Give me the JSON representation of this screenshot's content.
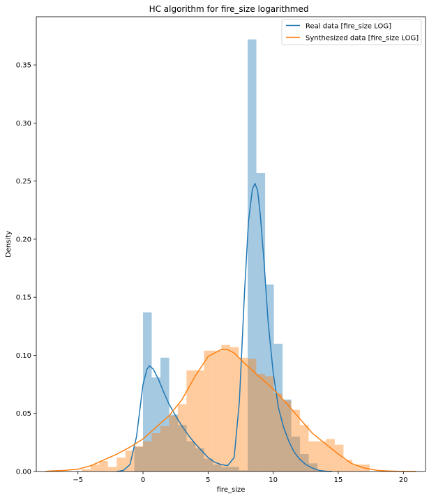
{
  "chart_data": {
    "type": "histogram",
    "title": "HC algorithm for fire_size logarithmed",
    "xlabel": "fire_size",
    "ylabel": "Density",
    "xlim": [
      -8.2,
      21.7
    ],
    "ylim": [
      0,
      0.3915
    ],
    "xticks": [
      -5,
      0,
      5,
      10,
      15,
      20
    ],
    "xtick_labels": [
      "−5",
      "0",
      "5",
      "10",
      "15",
      "20"
    ],
    "yticks": [
      0.0,
      0.05,
      0.1,
      0.15,
      0.2,
      0.25,
      0.3,
      0.35
    ],
    "ytick_labels": [
      "0.00",
      "0.05",
      "0.10",
      "0.15",
      "0.20",
      "0.25",
      "0.30",
      "0.35"
    ],
    "legend_location": "top-right",
    "series": [
      {
        "name": "Real data [fire_size LOG]",
        "color": "#1f77b4",
        "histogram": {
          "bin_width": 0.67,
          "bins": [
            {
              "x0": -0.67,
              "x1": 0.0,
              "density": 0.021
            },
            {
              "x0": 0.0,
              "x1": 0.67,
              "density": 0.137
            },
            {
              "x0": 0.67,
              "x1": 1.34,
              "density": 0.081
            },
            {
              "x0": 1.34,
              "x1": 2.01,
              "density": 0.098
            },
            {
              "x0": 2.01,
              "x1": 2.68,
              "density": 0.049
            },
            {
              "x0": 2.68,
              "x1": 3.35,
              "density": 0.04
            },
            {
              "x0": 3.35,
              "x1": 4.02,
              "density": 0.026
            },
            {
              "x0": 4.02,
              "x1": 4.69,
              "density": 0.02
            },
            {
              "x0": 4.69,
              "x1": 5.36,
              "density": 0.011
            },
            {
              "x0": 5.36,
              "x1": 6.03,
              "density": 0.006
            },
            {
              "x0": 6.03,
              "x1": 6.7,
              "density": 0.004
            },
            {
              "x0": 6.7,
              "x1": 7.37,
              "density": 0.004
            },
            {
              "x0": 7.37,
              "x1": 8.04,
              "density": 0.001
            },
            {
              "x0": 8.04,
              "x1": 8.71,
              "density": 0.372
            },
            {
              "x0": 8.71,
              "x1": 9.38,
              "density": 0.257
            },
            {
              "x0": 9.38,
              "x1": 10.05,
              "density": 0.161
            },
            {
              "x0": 10.05,
              "x1": 10.72,
              "density": 0.11
            },
            {
              "x0": 10.72,
              "x1": 11.39,
              "density": 0.062
            },
            {
              "x0": 11.39,
              "x1": 12.06,
              "density": 0.03
            },
            {
              "x0": 12.06,
              "x1": 12.73,
              "density": 0.015
            },
            {
              "x0": 12.73,
              "x1": 13.4,
              "density": 0.007
            }
          ]
        },
        "kde": {
          "x": [
            -2.0,
            -1.5,
            -1.0,
            -0.5,
            0.0,
            0.3,
            0.5,
            0.8,
            1.2,
            1.6,
            2.0,
            2.5,
            3.0,
            3.5,
            4.0,
            4.5,
            5.0,
            5.5,
            6.0,
            6.5,
            7.0,
            7.4,
            7.8,
            8.1,
            8.4,
            8.6,
            8.8,
            9.0,
            9.3,
            9.6,
            10.0,
            10.4,
            10.8,
            11.2,
            11.6,
            12.0,
            12.5,
            13.0,
            13.5,
            14.0,
            14.5
          ],
          "y": [
            0.0,
            0.001,
            0.006,
            0.03,
            0.075,
            0.088,
            0.091,
            0.088,
            0.079,
            0.068,
            0.058,
            0.048,
            0.039,
            0.031,
            0.024,
            0.018,
            0.012,
            0.008,
            0.006,
            0.005,
            0.012,
            0.06,
            0.155,
            0.215,
            0.243,
            0.248,
            0.242,
            0.222,
            0.18,
            0.13,
            0.085,
            0.055,
            0.038,
            0.026,
            0.017,
            0.011,
            0.006,
            0.003,
            0.001,
            0.0003,
            0.0
          ]
        }
      },
      {
        "name": "Synthesized data [fire_size LOG]",
        "color": "#ff7f0e",
        "histogram": {
          "bin_width": 0.67,
          "bins": [
            {
              "x0": -4.7,
              "x1": -4.03,
              "density": 0.002
            },
            {
              "x0": -4.03,
              "x1": -3.36,
              "density": 0.006
            },
            {
              "x0": -3.36,
              "x1": -2.69,
              "density": 0.009
            },
            {
              "x0": -2.69,
              "x1": -2.02,
              "density": 0.004
            },
            {
              "x0": -2.02,
              "x1": -1.35,
              "density": 0.012
            },
            {
              "x0": -1.35,
              "x1": -0.68,
              "density": 0.018
            },
            {
              "x0": -0.68,
              "x1": -0.01,
              "density": 0.022
            },
            {
              "x0": -0.01,
              "x1": 0.66,
              "density": 0.026
            },
            {
              "x0": 0.66,
              "x1": 1.33,
              "density": 0.033
            },
            {
              "x0": 1.33,
              "x1": 2.0,
              "density": 0.039
            },
            {
              "x0": 2.0,
              "x1": 2.67,
              "density": 0.048
            },
            {
              "x0": 2.67,
              "x1": 3.34,
              "density": 0.058
            },
            {
              "x0": 3.34,
              "x1": 4.01,
              "density": 0.087
            },
            {
              "x0": 4.01,
              "x1": 4.68,
              "density": 0.087
            },
            {
              "x0": 4.68,
              "x1": 5.35,
              "density": 0.104
            },
            {
              "x0": 5.35,
              "x1": 6.02,
              "density": 0.104
            },
            {
              "x0": 6.02,
              "x1": 6.69,
              "density": 0.109
            },
            {
              "x0": 6.69,
              "x1": 7.36,
              "density": 0.107
            },
            {
              "x0": 7.36,
              "x1": 8.03,
              "density": 0.098
            },
            {
              "x0": 8.03,
              "x1": 8.7,
              "density": 0.097
            },
            {
              "x0": 8.7,
              "x1": 9.37,
              "density": 0.084
            },
            {
              "x0": 9.37,
              "x1": 10.04,
              "density": 0.082
            },
            {
              "x0": 10.04,
              "x1": 10.71,
              "density": 0.067
            },
            {
              "x0": 10.71,
              "x1": 11.38,
              "density": 0.061
            },
            {
              "x0": 11.38,
              "x1": 12.05,
              "density": 0.053
            },
            {
              "x0": 12.05,
              "x1": 12.72,
              "density": 0.04
            },
            {
              "x0": 12.72,
              "x1": 13.39,
              "density": 0.026
            },
            {
              "x0": 13.39,
              "x1": 14.06,
              "density": 0.026
            },
            {
              "x0": 14.06,
              "x1": 14.73,
              "density": 0.028
            },
            {
              "x0": 14.73,
              "x1": 15.4,
              "density": 0.023
            },
            {
              "x0": 15.4,
              "x1": 16.07,
              "density": 0.01
            },
            {
              "x0": 16.07,
              "x1": 16.74,
              "density": 0.006
            },
            {
              "x0": 16.74,
              "x1": 17.41,
              "density": 0.006
            }
          ]
        },
        "kde": {
          "x": [
            -7.5,
            -7.0,
            -6.0,
            -5.0,
            -4.0,
            -3.0,
            -2.0,
            -1.0,
            0.0,
            1.0,
            2.0,
            3.0,
            4.0,
            5.0,
            6.0,
            6.5,
            7.0,
            8.0,
            9.0,
            10.0,
            11.0,
            12.0,
            13.0,
            14.0,
            15.0,
            16.0,
            17.0,
            18.0,
            19.0,
            20.0,
            21.0
          ],
          "y": [
            0.0,
            0.0005,
            0.001,
            0.002,
            0.005,
            0.01,
            0.015,
            0.021,
            0.028,
            0.038,
            0.048,
            0.062,
            0.082,
            0.099,
            0.105,
            0.105,
            0.102,
            0.091,
            0.081,
            0.071,
            0.059,
            0.046,
            0.033,
            0.024,
            0.015,
            0.007,
            0.003,
            0.001,
            0.0004,
            0.0001,
            0.0
          ]
        }
      }
    ]
  }
}
